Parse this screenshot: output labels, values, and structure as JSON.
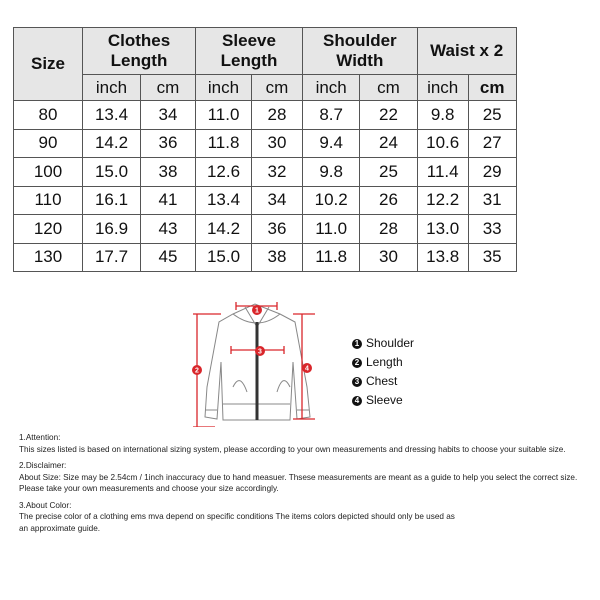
{
  "table": {
    "size_label": "Size",
    "groups": [
      "Clothes Length",
      "Sleeve Length",
      "Shoulder Width",
      "Waist x 2"
    ],
    "units": [
      "inch",
      "cm",
      "inch",
      "cm",
      "inch",
      "cm",
      "inch",
      "cm"
    ],
    "rows": [
      [
        "80",
        "13.4",
        "34",
        "11.0",
        "28",
        "8.7",
        "22",
        "9.8",
        "25"
      ],
      [
        "90",
        "14.2",
        "36",
        "11.8",
        "30",
        "9.4",
        "24",
        "10.6",
        "27"
      ],
      [
        "100",
        "15.0",
        "38",
        "12.6",
        "32",
        "9.8",
        "25",
        "11.4",
        "29"
      ],
      [
        "110",
        "16.1",
        "41",
        "13.4",
        "34",
        "10.2",
        "26",
        "12.2",
        "31"
      ],
      [
        "120",
        "16.9",
        "43",
        "14.2",
        "36",
        "11.0",
        "28",
        "13.0",
        "33"
      ],
      [
        "130",
        "17.7",
        "45",
        "15.0",
        "38",
        "11.8",
        "30",
        "13.8",
        "35"
      ]
    ]
  },
  "figure": {
    "markers": [
      "1",
      "2",
      "3",
      "4"
    ],
    "accent": "#d9262b"
  },
  "legend": [
    {
      "n": "1",
      "label": "Shoulder"
    },
    {
      "n": "2",
      "label": "Length"
    },
    {
      "n": "3",
      "label": "Chest"
    },
    {
      "n": "4",
      "label": "Sleeve"
    }
  ],
  "notes": [
    {
      "title": "1.Attention:",
      "lines": [
        "This sizes listed is based on international sizing system, please according to your own measurements and dressing habits to choose your suitable size."
      ]
    },
    {
      "title": "2.Disclaimer:",
      "lines": [
        "About Size: Size may be 2.54cm / 1inch inaccuracy due to hand measuer. Thsese measurements are meant as a guide to help you select the correct size.",
        "Please take your own measurements and choose your size accordingly."
      ]
    },
    {
      "title": "3.About Color:",
      "lines": [
        "The precise color of a clothing ems mva depend on specific conditions The items colors depicted should only be used as",
        "an approximate guide."
      ]
    }
  ]
}
